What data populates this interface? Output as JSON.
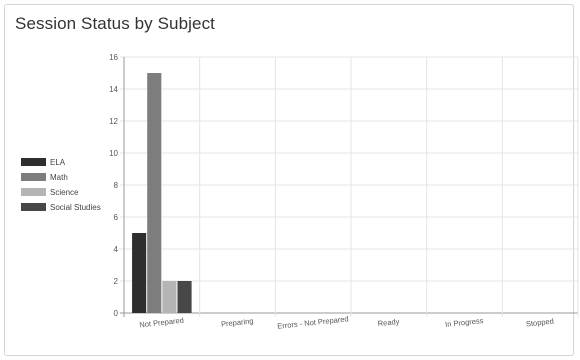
{
  "card": {
    "title": "Session Status by Subject"
  },
  "chart_data": {
    "type": "bar",
    "title": "Session Status by Subject",
    "categories": [
      "Not Prepared",
      "Preparing",
      "Errors - Not Prepared",
      "Ready",
      "In Progress",
      "Stopped"
    ],
    "series": [
      {
        "name": "ELA",
        "color": "#2e2e2e",
        "values": [
          5,
          0,
          0,
          0,
          0,
          0
        ]
      },
      {
        "name": "Math",
        "color": "#7d7d7d",
        "values": [
          15,
          0,
          0,
          0,
          0,
          0
        ]
      },
      {
        "name": "Science",
        "color": "#b5b5b5",
        "values": [
          2,
          0,
          0,
          0,
          0,
          0
        ]
      },
      {
        "name": "Social Studies",
        "color": "#474747",
        "values": [
          2,
          0,
          0,
          0,
          0,
          0
        ]
      }
    ],
    "y_ticks": [
      0,
      2,
      4,
      6,
      8,
      10,
      12,
      14,
      16
    ],
    "ylim": [
      0,
      16
    ],
    "xlabel": "",
    "ylabel": "",
    "grid": true,
    "legend_position": "left"
  }
}
